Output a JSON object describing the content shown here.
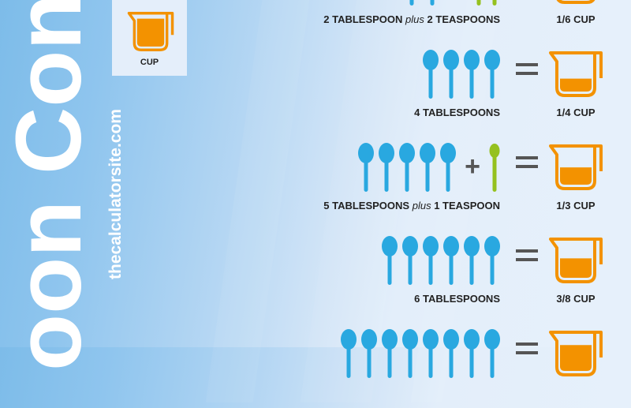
{
  "title_visible": "oon Conv",
  "site": "thecalculatorsite.com",
  "legend": {
    "label": "CUP",
    "icon": "measuring-cup-icon"
  },
  "colors": {
    "tablespoon": "#29a8e0",
    "teaspoon": "#95c11f",
    "cup": "#f39200",
    "operator": "#555555",
    "text": "#222222"
  },
  "rows": [
    {
      "tablespoons": 2,
      "teaspoons": 2,
      "label_a": "2 TABLESPOON",
      "label_plus": "plus",
      "label_b": "2 TEASPOONS",
      "cup_label": "1/6 CUP",
      "cup_fill": 0.167
    },
    {
      "tablespoons": 4,
      "teaspoons": 0,
      "label_a": "4 TABLESPOONS",
      "label_plus": "",
      "label_b": "",
      "cup_label": "1/4 CUP",
      "cup_fill": 0.25
    },
    {
      "tablespoons": 5,
      "teaspoons": 1,
      "label_a": "5 TABLESPOONS",
      "label_plus": "plus",
      "label_b": "1 TEASPOON",
      "cup_label": "1/3 CUP",
      "cup_fill": 0.333
    },
    {
      "tablespoons": 6,
      "teaspoons": 0,
      "label_a": "6 TABLESPOONS",
      "label_plus": "",
      "label_b": "",
      "cup_label": "3/8 CUP",
      "cup_fill": 0.375
    },
    {
      "tablespoons": 8,
      "teaspoons": 0,
      "label_a": "",
      "label_plus": "",
      "label_b": "",
      "cup_label": "",
      "cup_fill": 0.5
    }
  ]
}
